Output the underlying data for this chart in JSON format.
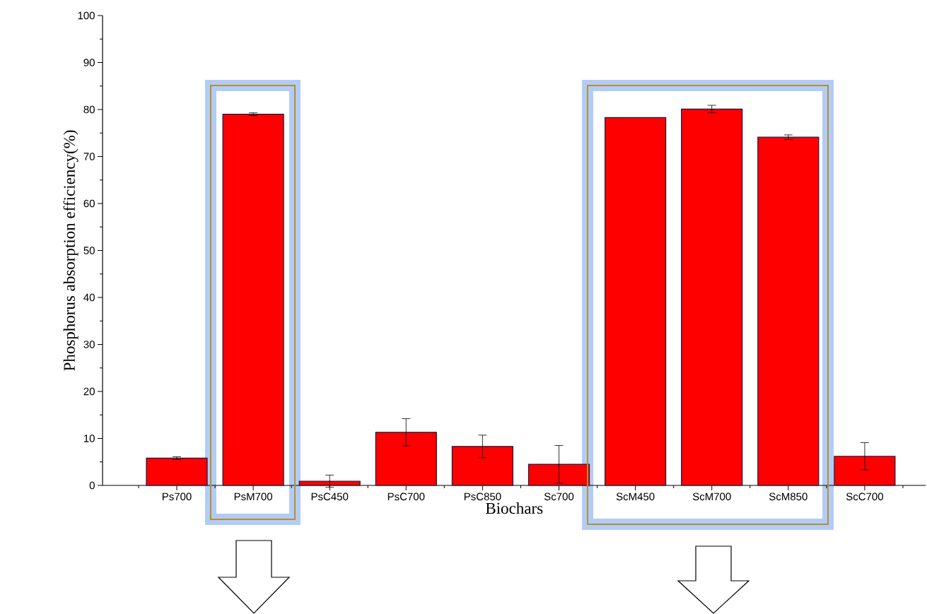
{
  "chart_data": {
    "type": "bar",
    "xlabel": "Biochars",
    "ylabel": "Phosphorus absorption efficiency(%)",
    "categories": [
      "Ps700",
      "PsM700",
      "PsC450",
      "PsC700",
      "PsC850",
      "Sc700",
      "ScM450",
      "ScM700",
      "ScM850",
      "ScC700"
    ],
    "values": [
      5.8,
      79.0,
      0.9,
      11.3,
      8.3,
      4.5,
      78.3,
      80.1,
      74.1,
      6.2
    ],
    "errors": [
      0.3,
      0.3,
      1.3,
      2.9,
      2.4,
      4.0,
      null,
      0.8,
      0.5,
      2.9
    ],
    "color": "#ff0000",
    "ylim": [
      0,
      100
    ],
    "yticks": [
      0,
      10,
      20,
      30,
      40,
      50,
      60,
      70,
      80,
      90,
      100
    ]
  }
}
